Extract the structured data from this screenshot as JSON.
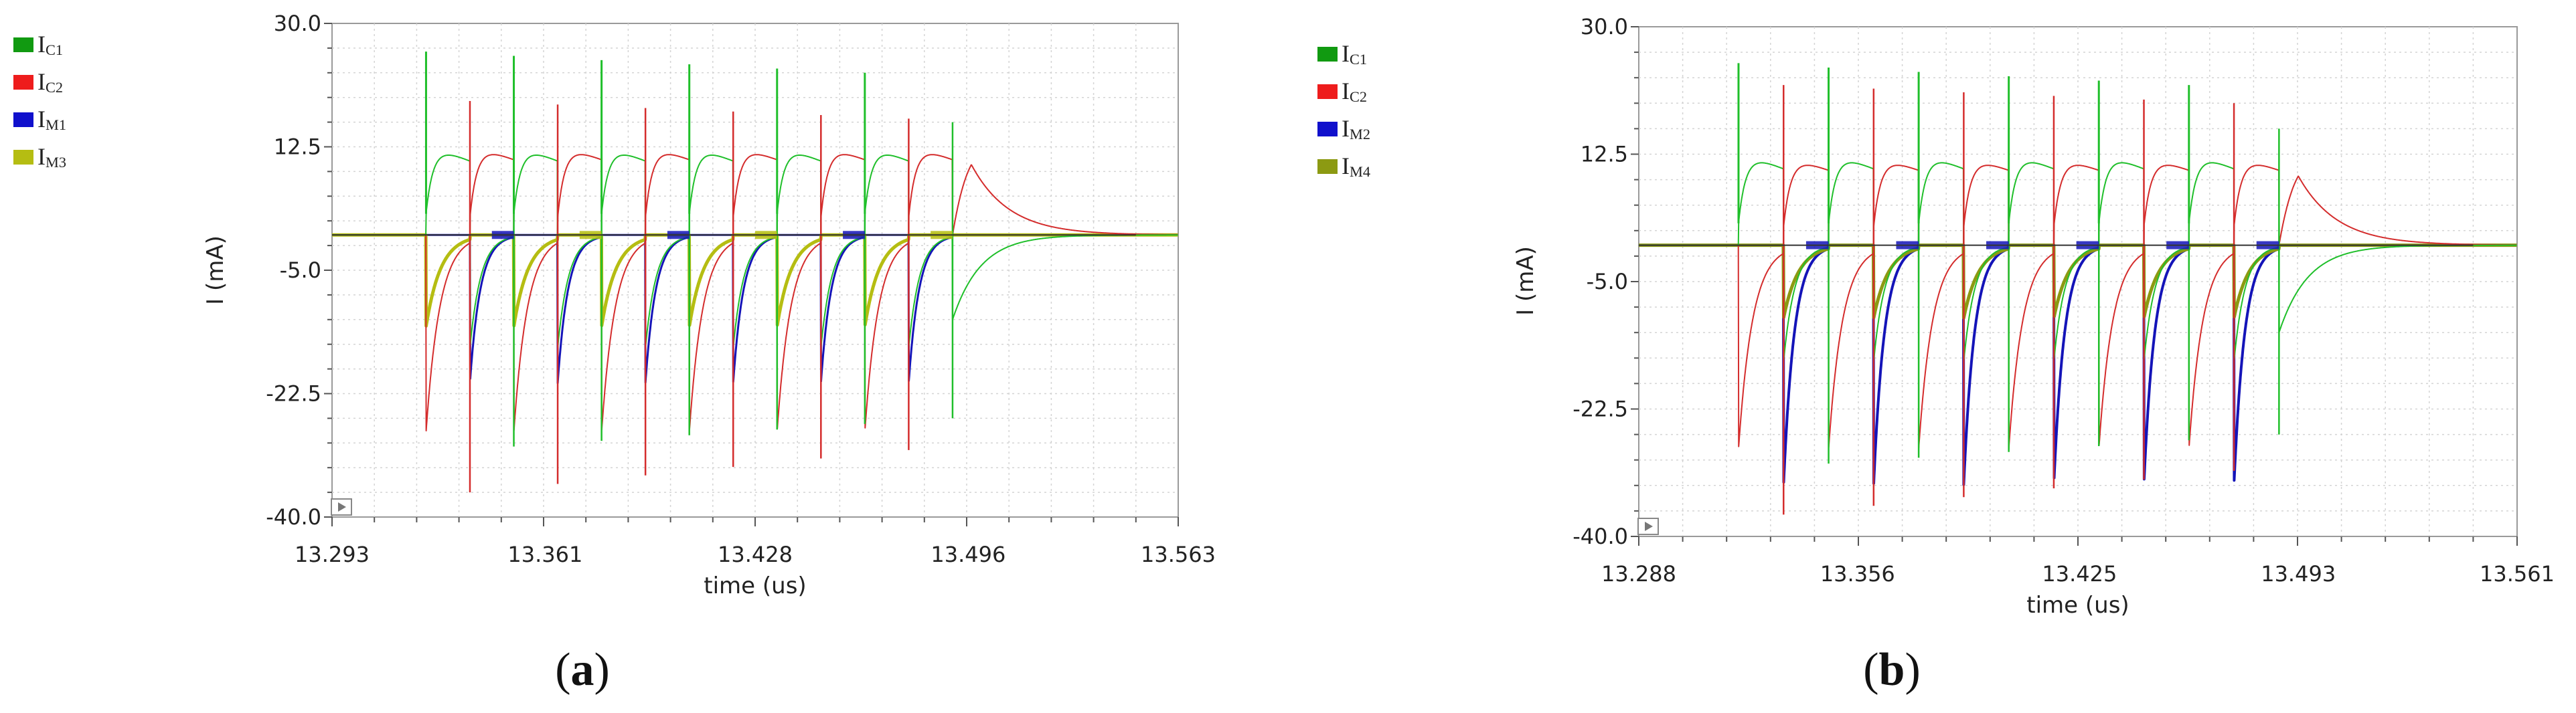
{
  "colors": {
    "green": "#1fbf2a",
    "red": "#d42c2c",
    "blue": "#1414b8",
    "yellow": "#b5bd12",
    "olive": "#8c9a12",
    "legend_green": "#119a11",
    "legend_red": "#ee1c1c",
    "legend_blue": "#1010cc",
    "grid": "#d4d4d4"
  },
  "chart_data": [
    {
      "type": "line",
      "panel": "(a)",
      "caption": {
        "open": "(",
        "letter": "a",
        "close": ")"
      },
      "xlabel": "time (us)",
      "ylabel": "I (mA)",
      "xlim": [
        13.293,
        13.563
      ],
      "ylim": [
        -40.0,
        30.0
      ],
      "xticks": [
        "13.293",
        "13.361",
        "13.428",
        "13.496",
        "13.563"
      ],
      "yticks": [
        "30.0",
        "12.5",
        "-5.0",
        "-22.5",
        "-40.0"
      ],
      "legend_position": "left",
      "legend": [
        {
          "main": "I",
          "sub": "C1",
          "color_key": "legend_green"
        },
        {
          "main": "I",
          "sub": "C2",
          "color_key": "legend_red"
        },
        {
          "main": "I",
          "sub": "M1",
          "color_key": "legend_blue"
        },
        {
          "main": "I",
          "sub": "M3",
          "color_key": "yellow"
        }
      ],
      "pulse_start": [
        13.323,
        13.351,
        13.379,
        13.407,
        13.435,
        13.463,
        13.491
      ],
      "series": [
        {
          "id": "IC1",
          "color_key": "green",
          "spike_high": 26.0,
          "spike_low": -30.0,
          "plateau": 10.0
        },
        {
          "id": "IC2",
          "color_key": "red",
          "spike_high": 19.0,
          "spike_low": -36.5,
          "plateau": 10.5
        },
        {
          "id": "IM1",
          "color_key": "blue",
          "dip": -21.0
        },
        {
          "id": "IM3",
          "color_key": "yellow",
          "dip": -13.0
        }
      ],
      "baseline": 0.0
    },
    {
      "type": "line",
      "panel": "(b)",
      "caption": {
        "open": "(",
        "letter": "b",
        "close": ")"
      },
      "xlabel": "time (us)",
      "ylabel": "I (mA)",
      "xlim": [
        13.288,
        13.561
      ],
      "ylim": [
        -40.0,
        30.0
      ],
      "xticks": [
        "13.288",
        "13.356",
        "13.425",
        "13.493",
        "13.561"
      ],
      "yticks": [
        "30.0",
        "12.5",
        "-5.0",
        "-22.5",
        "-40.0"
      ],
      "legend_position": "left",
      "legend": [
        {
          "main": "I",
          "sub": "C1",
          "color_key": "legend_green"
        },
        {
          "main": "I",
          "sub": "C2",
          "color_key": "legend_red"
        },
        {
          "main": "I",
          "sub": "M2",
          "color_key": "legend_blue"
        },
        {
          "main": "I",
          "sub": "M4",
          "color_key": "olive"
        }
      ],
      "pulse_start": [
        13.319,
        13.347,
        13.375,
        13.403,
        13.431,
        13.459,
        13.487
      ],
      "series": [
        {
          "id": "IC1",
          "color_key": "green",
          "spike_high": 25.0,
          "spike_low": -30.0,
          "plateau": 10.0
        },
        {
          "id": "IC2",
          "color_key": "red",
          "spike_high": 22.0,
          "spike_low": -37.0,
          "plateau": 10.0
        },
        {
          "id": "IM2",
          "color_key": "blue",
          "dip": -33.0
        },
        {
          "id": "IM4",
          "color_key": "olive",
          "dip": -10.0
        }
      ],
      "baseline": 0.0
    }
  ]
}
